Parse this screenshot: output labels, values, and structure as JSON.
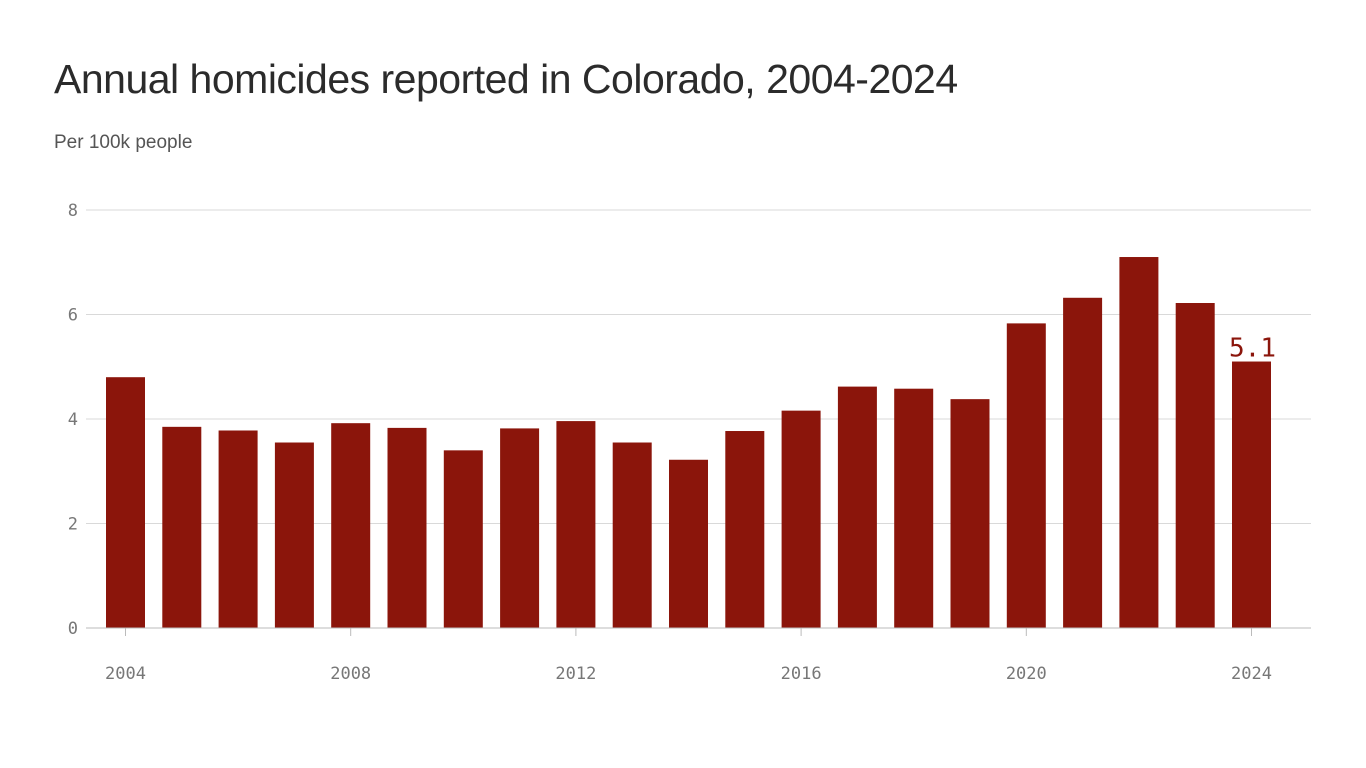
{
  "title": "Annual homicides reported in Colorado, 2004-2024",
  "subtitle": "Per 100k people",
  "colors": {
    "bar": "#8b150b",
    "grid": "#d9d9d9",
    "axis": "#bbbbbb",
    "label": "#8b150b"
  },
  "chart_data": {
    "type": "bar",
    "title": "Annual homicides reported in Colorado, 2004-2024",
    "subtitle": "Per 100k people",
    "xlabel": "",
    "ylabel": "",
    "categories": [
      2004,
      2005,
      2006,
      2007,
      2008,
      2009,
      2010,
      2011,
      2012,
      2013,
      2014,
      2015,
      2016,
      2017,
      2018,
      2019,
      2020,
      2021,
      2022,
      2023,
      2024
    ],
    "values": [
      4.8,
      3.85,
      3.78,
      3.55,
      3.92,
      3.83,
      3.4,
      3.82,
      3.96,
      3.55,
      3.22,
      3.77,
      4.16,
      4.62,
      4.58,
      4.38,
      5.83,
      6.32,
      7.1,
      6.22,
      5.1
    ],
    "ylim": [
      0,
      8
    ],
    "yticks": [
      "0",
      "2",
      "4",
      "6",
      "8"
    ],
    "xticks": [
      "2004",
      "2008",
      "2012",
      "2016",
      "2020",
      "2024"
    ],
    "grid": true,
    "annotations": [
      {
        "category": 2024,
        "text": "5.1"
      }
    ]
  }
}
